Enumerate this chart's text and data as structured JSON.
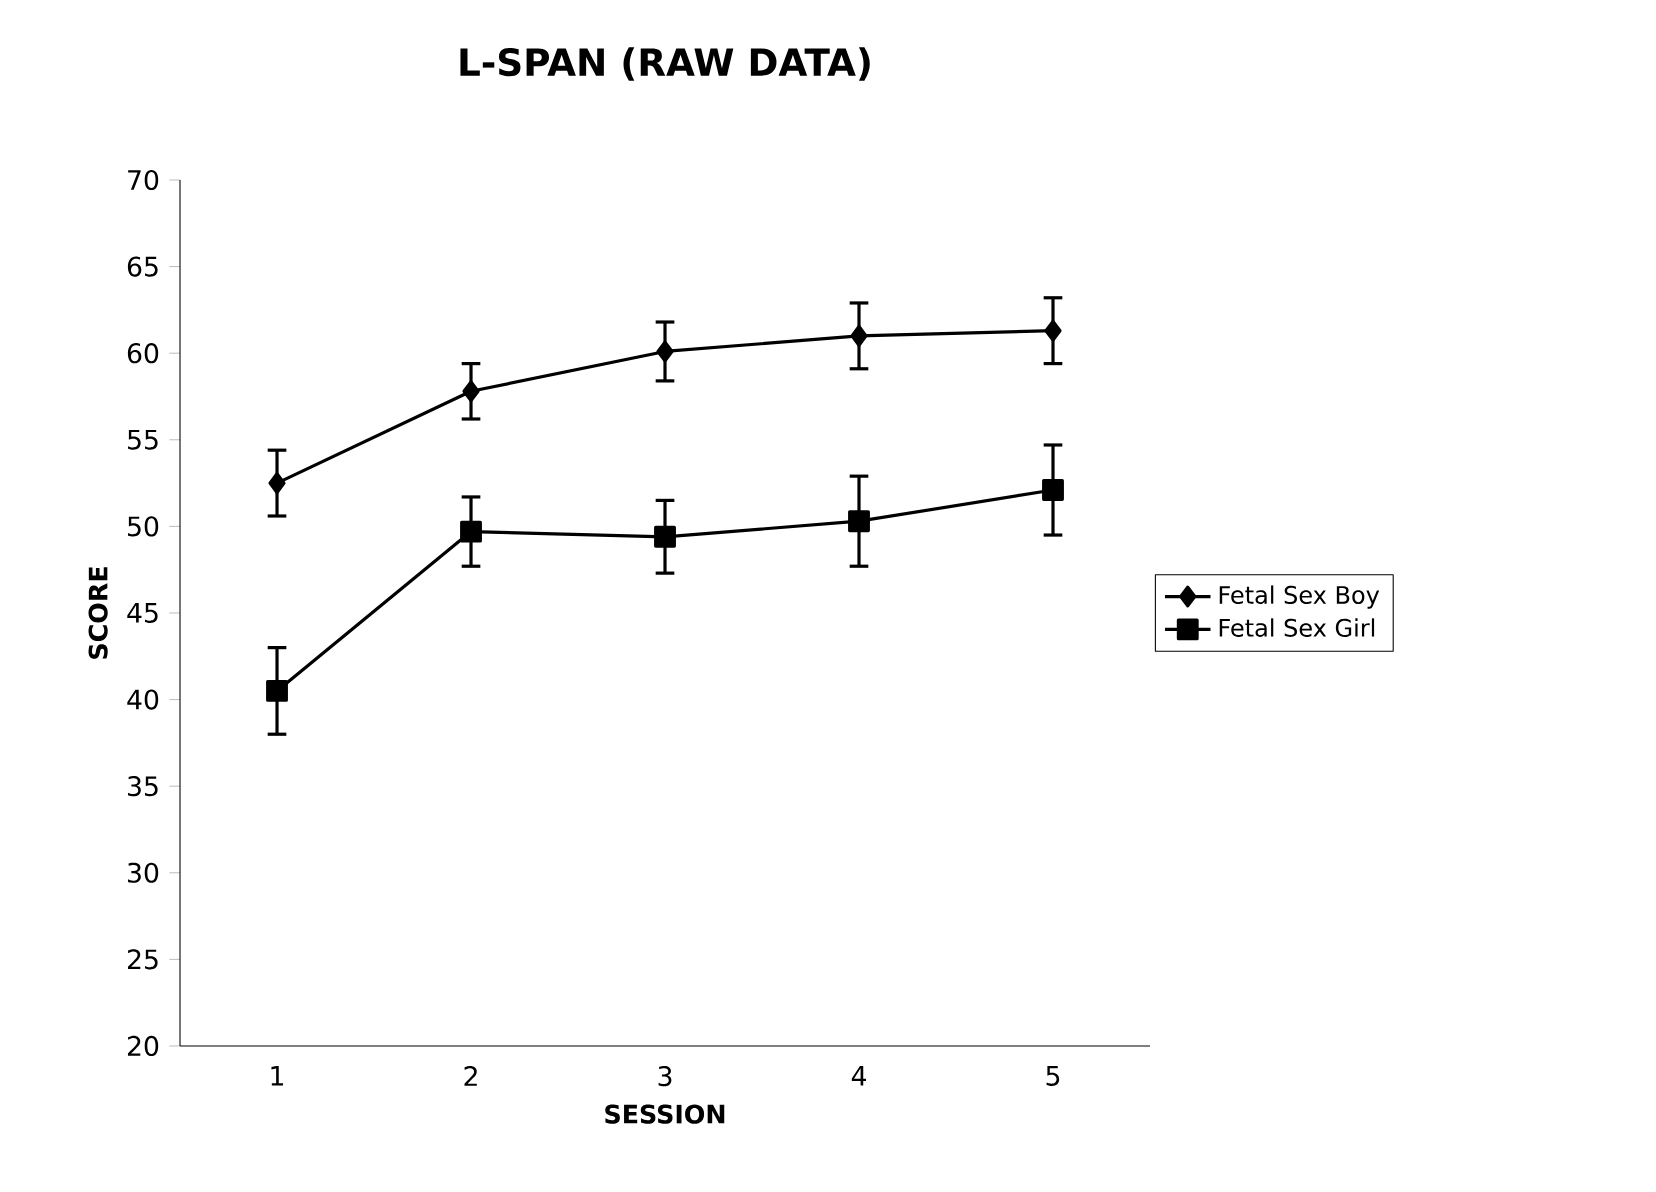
{
  "chart_data": {
    "type": "line",
    "title": "L-SPAN (RAW DATA)",
    "xlabel": "SESSION",
    "ylabel": "SCORE",
    "categories": [
      "1",
      "2",
      "3",
      "4",
      "5"
    ],
    "series": [
      {
        "name": "Fetal Sex Boy",
        "color": "#000000",
        "marker": "diamond",
        "values": [
          52.5,
          57.8,
          60.1,
          61.0,
          61.3
        ],
        "errors": [
          1.9,
          1.6,
          1.7,
          1.9,
          1.9
        ]
      },
      {
        "name": "Fetal Sex Girl",
        "color": "#000000",
        "marker": "square",
        "values": [
          40.5,
          49.7,
          49.4,
          50.3,
          52.1
        ],
        "errors": [
          2.5,
          2.0,
          2.1,
          2.6,
          2.6
        ]
      }
    ],
    "ylim": [
      20,
      70
    ],
    "yticks": [
      20,
      25,
      30,
      35,
      40,
      45,
      50,
      55,
      60,
      65,
      70
    ],
    "legend": "right"
  }
}
